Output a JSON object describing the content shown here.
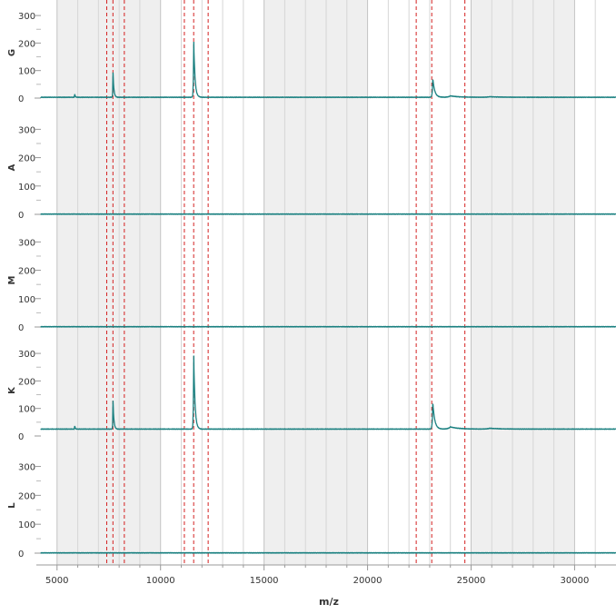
{
  "chart_data": {
    "type": "line",
    "xlabel": "m/z",
    "xlim": [
      4000,
      32000
    ],
    "x_ticks": [
      5000,
      10000,
      15000,
      20000,
      25000,
      30000
    ],
    "x_tick_labels": [
      "5000",
      "10000",
      "15000",
      "20000",
      "25000",
      "30000"
    ],
    "y_ticks": [
      0,
      100,
      200,
      300
    ],
    "y_tick_labels": [
      "0",
      "100",
      "200",
      "300"
    ],
    "grid": true,
    "shaded_bands": [
      [
        5000,
        10000
      ],
      [
        15000,
        20000
      ],
      [
        25000,
        30000
      ]
    ],
    "marker_lines_mz": [
      7400,
      7700,
      8250,
      11150,
      11600,
      12300,
      22350,
      23100,
      24700
    ],
    "colors": {
      "trace": "#1a8080",
      "marker": "#d42020",
      "band": "#efefef",
      "grid": "#d6d6d6"
    },
    "panels": [
      {
        "label": "G",
        "ylim": [
          -10,
          330
        ],
        "baseline": 3,
        "peaks": [
          [
            5850,
            15,
            25
          ],
          [
            7700,
            100,
            40
          ],
          [
            11600,
            215,
            60
          ],
          [
            23150,
            70,
            90
          ],
          [
            24000,
            5,
            400
          ],
          [
            25900,
            2,
            500
          ]
        ]
      },
      {
        "label": "A",
        "ylim": [
          -10,
          330
        ],
        "baseline": 1,
        "peaks": []
      },
      {
        "label": "M",
        "ylim": [
          -10,
          330
        ],
        "baseline": 1,
        "peaks": []
      },
      {
        "label": "K",
        "ylim": [
          -10,
          330
        ],
        "baseline": 25,
        "peaks": [
          [
            5850,
            15,
            25
          ],
          [
            7700,
            115,
            40
          ],
          [
            11600,
            285,
            60
          ],
          [
            23150,
            100,
            90
          ],
          [
            24000,
            8,
            400
          ],
          [
            25900,
            3,
            500
          ]
        ]
      },
      {
        "label": "L",
        "ylim": [
          -10,
          330
        ],
        "baseline": 1,
        "peaks": []
      }
    ]
  }
}
